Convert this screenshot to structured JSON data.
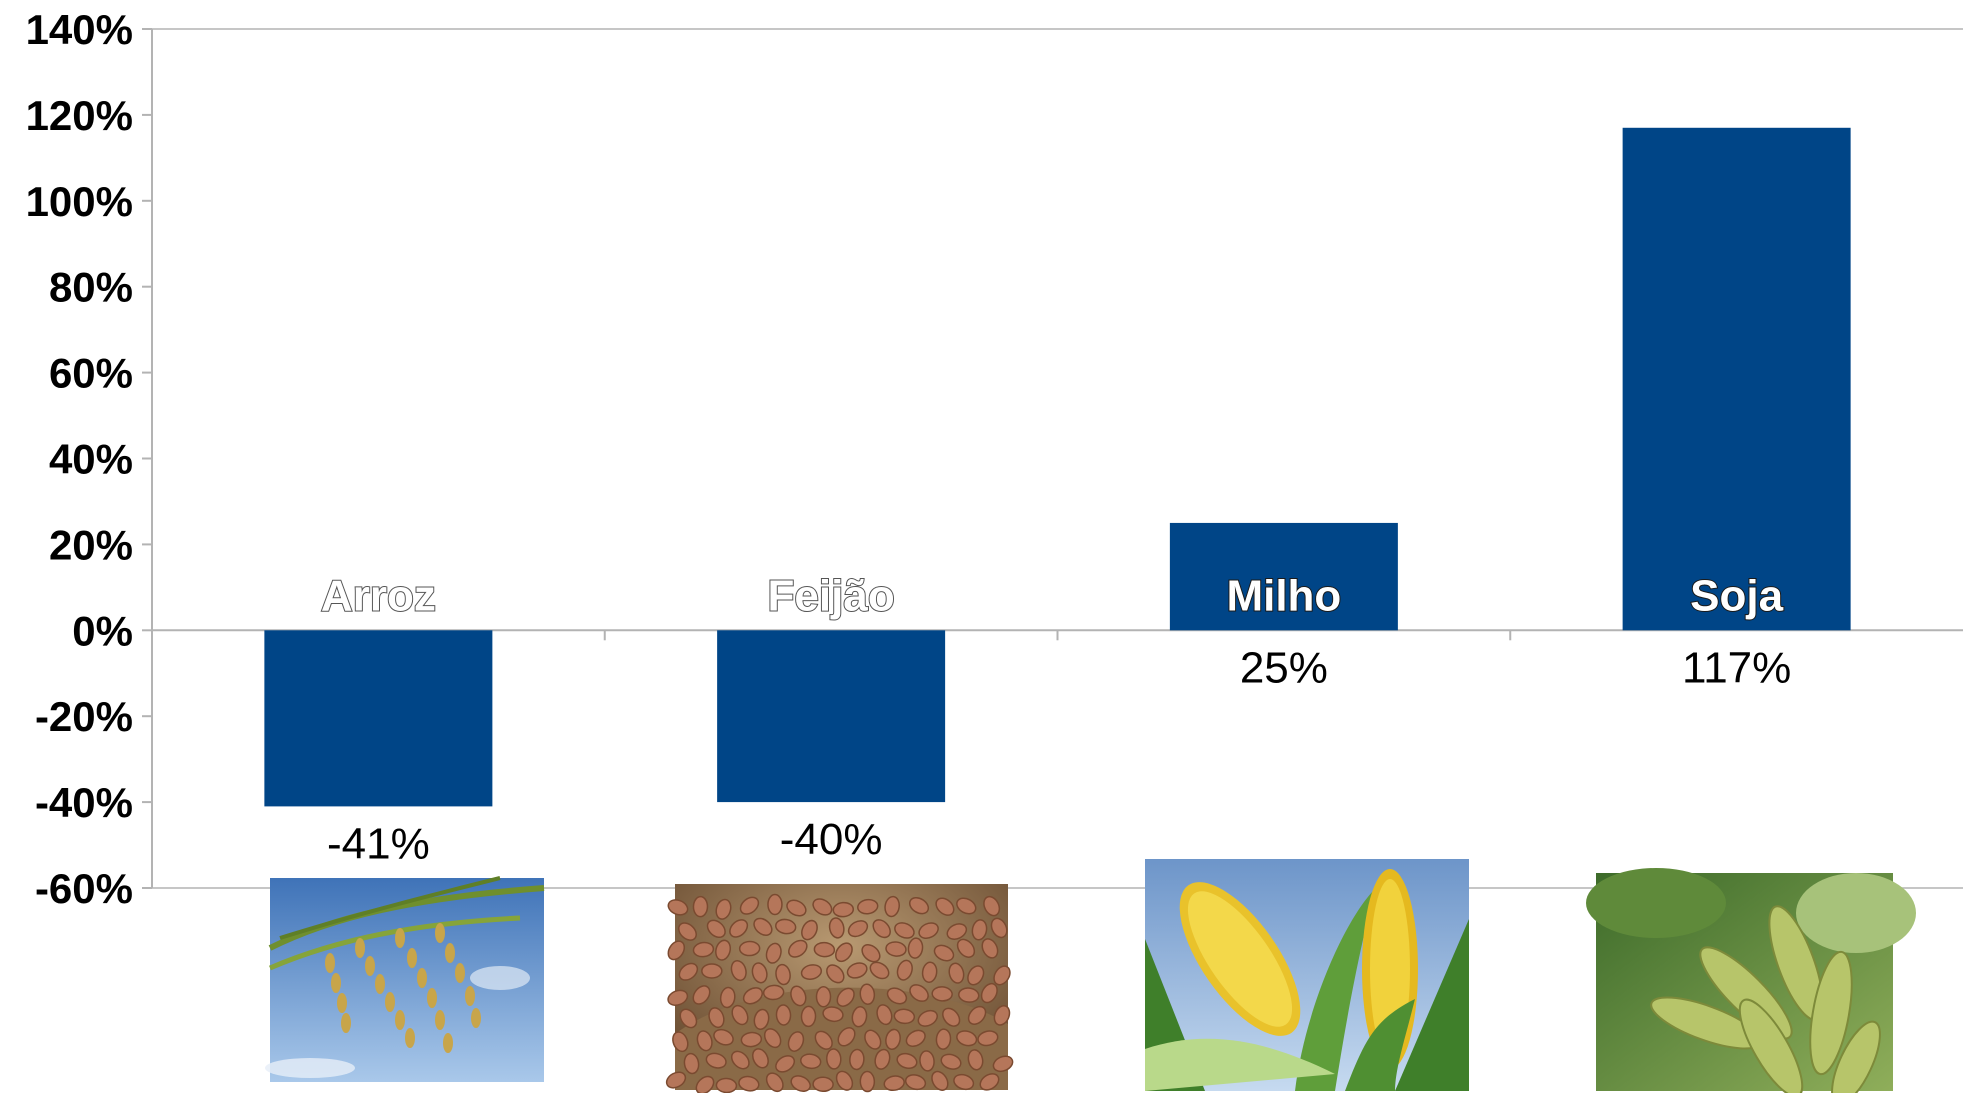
{
  "chart_data": {
    "type": "bar",
    "title": "",
    "xlabel": "",
    "ylabel": "",
    "categories": [
      "Arroz",
      "Feijão",
      "Milho",
      "Soja"
    ],
    "values": [
      -41,
      -40,
      25,
      117
    ],
    "data_labels": [
      "-41%",
      "-40%",
      "25%",
      "117%"
    ],
    "ylim": [
      -60,
      140
    ],
    "yticks": [
      140,
      120,
      100,
      80,
      60,
      40,
      20,
      0,
      -20,
      -40,
      -60
    ],
    "ytick_labels": [
      "140%",
      "120%",
      "100%",
      "80%",
      "60%",
      "40%",
      "20%",
      "0%",
      "-20%",
      "-40%",
      "-60%"
    ],
    "grid": false,
    "legend": "none",
    "colors": {
      "bar": "#004587",
      "axis": "#b3b3b3",
      "text": "#000000"
    },
    "category_icons": [
      "rice-plant-icon",
      "beans-sack-icon",
      "corn-cob-icon",
      "soybean-pod-icon"
    ]
  }
}
